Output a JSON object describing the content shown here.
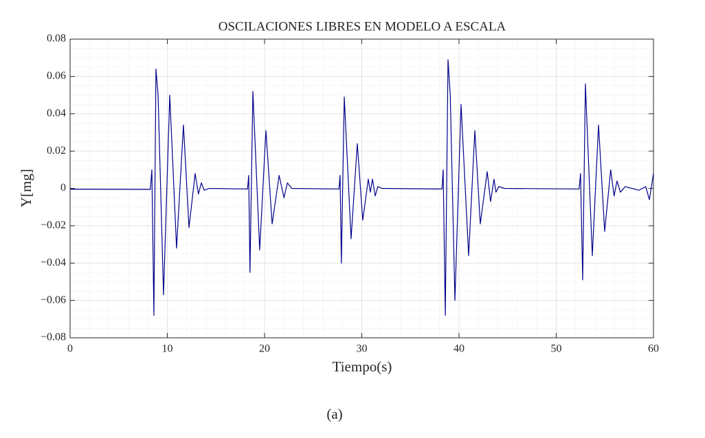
{
  "chart_data": {
    "type": "line",
    "title": "OSCILACIONES LIBRES EN MODELO A ESCALA",
    "x_label": "Tiempo(s)",
    "y_label": "Y[mg]",
    "caption": "(a)",
    "xlim": [
      0,
      60
    ],
    "ylim": [
      -0.08,
      0.08
    ],
    "xticks": [
      0,
      10,
      20,
      30,
      40,
      50,
      60
    ],
    "yticks": [
      {
        "value": -0.08,
        "label": "−0.08"
      },
      {
        "value": -0.06,
        "label": "−0.06"
      },
      {
        "value": -0.04,
        "label": "−0.04"
      },
      {
        "value": -0.02,
        "label": "−0.02"
      },
      0,
      0.02,
      0.04,
      0.06,
      0.08
    ],
    "grid": true,
    "minor_grid": true,
    "series": [
      {
        "color": "#00008b",
        "x": [
          0,
          8.25,
          8.41,
          8.62,
          8.83,
          9.05,
          9.61,
          10.25,
          10.95,
          11.66,
          12.23,
          12.86,
          13.2,
          13.5,
          13.8,
          14.3,
          18.25,
          18.37,
          18.5,
          18.8,
          19.5,
          20.14,
          20.78,
          21.5,
          22.0,
          22.35,
          22.8,
          27.65,
          27.77,
          27.9,
          28.2,
          28.9,
          29.54,
          30.1,
          30.67,
          30.88,
          31.1,
          31.38,
          31.65,
          32.1,
          38.25,
          38.37,
          38.59,
          38.87,
          39.1,
          39.58,
          40.21,
          40.99,
          41.63,
          42.19,
          42.9,
          43.25,
          43.6,
          43.8,
          44.1,
          44.7,
          52.35,
          52.5,
          52.72,
          53.0,
          53.71,
          54.35,
          54.98,
          55.6,
          55.95,
          56.25,
          56.6,
          57.1,
          58.5,
          59.2,
          59.58,
          60
        ],
        "values": [
          -0.0004,
          -0.0005,
          0.01,
          -0.068,
          0.064,
          0.05,
          -0.057,
          0.05,
          -0.032,
          0.034,
          -0.021,
          0.008,
          -0.003,
          0.003,
          -0.001,
          0,
          -0.0003,
          0.007,
          -0.045,
          0.052,
          -0.033,
          0.031,
          -0.019,
          0.007,
          -0.005,
          0.003,
          0,
          -0.0003,
          0.007,
          -0.04,
          0.049,
          -0.027,
          0.024,
          -0.017,
          0.005,
          -0.002,
          0.005,
          -0.004,
          0.001,
          0,
          -0.0003,
          0.01,
          -0.068,
          0.069,
          0.05,
          -0.06,
          0.045,
          -0.036,
          0.031,
          -0.019,
          0.009,
          -0.007,
          0.005,
          -0.002,
          0.001,
          0,
          -0.0003,
          0.008,
          -0.049,
          0.056,
          -0.036,
          0.034,
          -0.023,
          0.01,
          -0.004,
          0.004,
          -0.002,
          0.001,
          -0.001,
          0.001,
          -0.006,
          0.008
        ]
      }
    ]
  }
}
